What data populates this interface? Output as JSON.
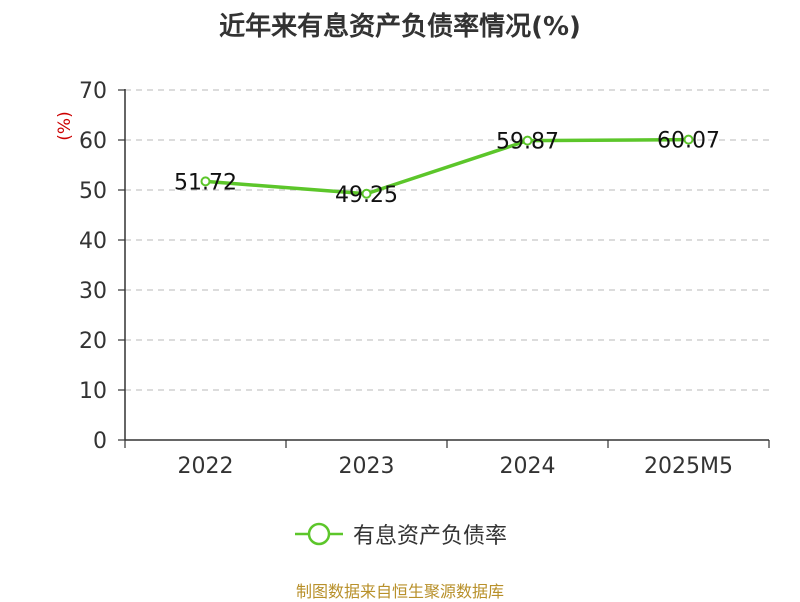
{
  "chart_data": {
    "type": "line",
    "title": "近年来有息资产负债率情况(%)",
    "ylabel": "(%)",
    "categories": [
      "2022",
      "2023",
      "2024",
      "2025M5"
    ],
    "series": [
      {
        "name": "有息资产负债率",
        "values": [
          51.72,
          49.25,
          59.87,
          60.07
        ]
      }
    ],
    "data_labels": [
      "51.72",
      "49.25",
      "59.87",
      "60.07"
    ],
    "ylim": [
      0,
      70
    ],
    "yticks": [
      0,
      10,
      20,
      30,
      40,
      50,
      60,
      70
    ],
    "grid": true,
    "legend": "bottom-center",
    "colors": {
      "line": "#5cc62a",
      "ylabel": "#cc0000",
      "source": "#b8902a"
    }
  },
  "source_text": "制图数据来自恒生聚源数据库"
}
